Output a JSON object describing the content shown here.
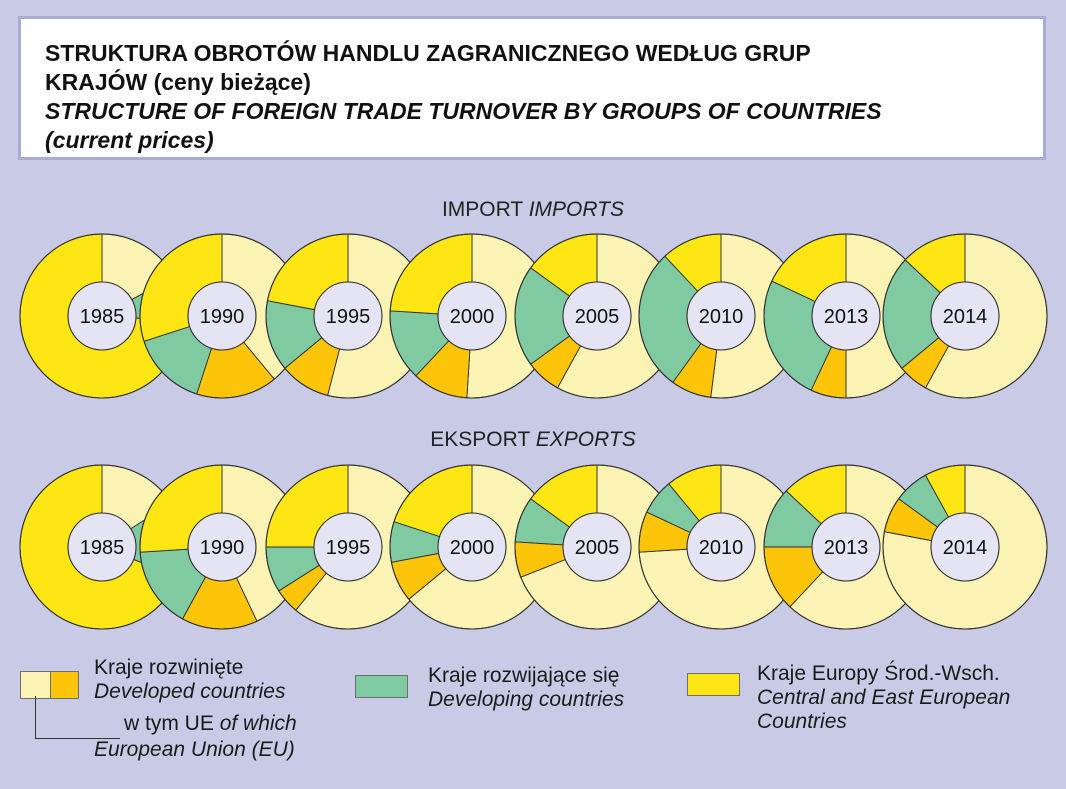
{
  "header": {
    "title_pl_line1": "STRUKTURA OBROTÓW HANDLU ZAGRANICZNEGO WEDŁUG GRUP",
    "title_pl_line2": "KRAJÓW (ceny bieżące)",
    "title_en_line1": "STRUCTURE OF FOREIGN TRADE TURNOVER BY GROUPS OF COUNTRIES",
    "title_en_line2": "(current prices)"
  },
  "sections": {
    "imports_pl": "IMPORT",
    "imports_en": "IMPORTS",
    "exports_pl": "EKSPORT",
    "exports_en": "EXPORTS"
  },
  "colors": {
    "developed_other": "#fbf3b4",
    "eu": "#fdc50a",
    "developing": "#7fcaa1",
    "cee": "#fde614",
    "center": "#e4e4f4"
  },
  "legend": {
    "developed_pl": "Kraje rozwinięte",
    "developed_en": "Developed countries",
    "eu_pl": "w tym UE",
    "eu_en_part": "of which",
    "eu_en_line2": "European Union (EU)",
    "developing_pl": "Kraje rozwijające się",
    "developing_en": "Developing countries",
    "cee_pl": "Kraje Europy Środ.-Wsch.",
    "cee_en_line1": "Central and East European",
    "cee_en_line2": "Countries"
  },
  "chart_data": [
    {
      "type": "pie",
      "title": "IMPORT IMPORTS",
      "categories": [
        "1985",
        "1990",
        "1995",
        "2000",
        "2005",
        "2010",
        "2013",
        "2014"
      ],
      "slice_order": [
        "Developed countries excl. EU",
        "Developed countries – EU",
        "Developing countries",
        "Central and East European Countries"
      ],
      "series": [
        {
          "name": "Developed countries excl. EU",
          "values": [
            17,
            39,
            54,
            51,
            58,
            52,
            50,
            58
          ]
        },
        {
          "name": "Developed countries – EU",
          "values": [
            0,
            16,
            10,
            11,
            7,
            8,
            7,
            6
          ]
        },
        {
          "name": "Developing countries",
          "values": [
            9,
            15,
            14,
            14,
            20,
            28,
            25,
            23
          ]
        },
        {
          "name": "Central and East European Countries",
          "values": [
            74,
            30,
            22,
            24,
            15,
            12,
            18,
            13
          ]
        }
      ]
    },
    {
      "type": "pie",
      "title": "EKSPORT EXPORTS",
      "categories": [
        "1985",
        "1990",
        "1995",
        "2000",
        "2005",
        "2010",
        "2013",
        "2014"
      ],
      "slice_order": [
        "Developed countries excl. EU",
        "Developed countries – EU",
        "Developing countries",
        "Central and East European Countries"
      ],
      "series": [
        {
          "name": "Developed countries excl. EU",
          "values": [
            16,
            43,
            61,
            64,
            69,
            74,
            62,
            78
          ]
        },
        {
          "name": "Developed countries – EU",
          "values": [
            0,
            15,
            5,
            8,
            7,
            8,
            13,
            7
          ]
        },
        {
          "name": "Developing countries",
          "values": [
            15,
            16,
            9,
            8,
            9,
            7,
            12,
            7
          ]
        },
        {
          "name": "Central and East European Countries",
          "values": [
            69,
            26,
            25,
            20,
            15,
            11,
            13,
            8
          ]
        }
      ]
    }
  ]
}
